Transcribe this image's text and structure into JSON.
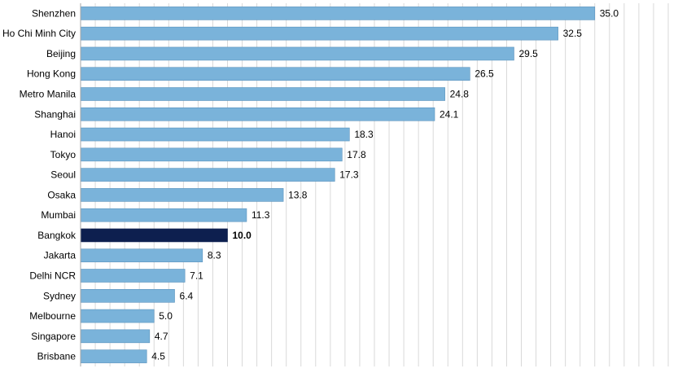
{
  "chart_data": {
    "type": "bar",
    "orientation": "horizontal",
    "categories": [
      "Shenzhen",
      "Ho Chi Minh City",
      "Beijing",
      "Hong Kong",
      "Metro Manila",
      "Shanghai",
      "Hanoi",
      "Tokyo",
      "Seoul",
      "Osaka",
      "Mumbai",
      "Bangkok",
      "Jakarta",
      "Delhi NCR",
      "Sydney",
      "Melbourne",
      "Singapore",
      "Brisbane"
    ],
    "values": [
      35.0,
      32.5,
      29.5,
      26.5,
      24.8,
      24.1,
      18.3,
      17.8,
      17.3,
      13.8,
      11.3,
      10.0,
      8.3,
      7.1,
      6.4,
      5.0,
      4.7,
      4.5
    ],
    "value_labels": [
      "35.0",
      "32.5",
      "29.5",
      "26.5",
      "24.8",
      "24.1",
      "18.3",
      "17.8",
      "17.3",
      "13.8",
      "11.3",
      "10.0",
      "8.3",
      "7.1",
      "6.4",
      "5.0",
      "4.7",
      "4.5"
    ],
    "highlight_category": "Bangkok",
    "xlim": [
      0,
      40
    ],
    "grid": true,
    "legend": "none",
    "title": "",
    "xlabel": "",
    "ylabel": "",
    "colors": {
      "bar": "#7ab3da",
      "bar_border": "#5a93bd",
      "highlight": "#0d1f4f",
      "highlight_label": "#1f3a78"
    }
  }
}
